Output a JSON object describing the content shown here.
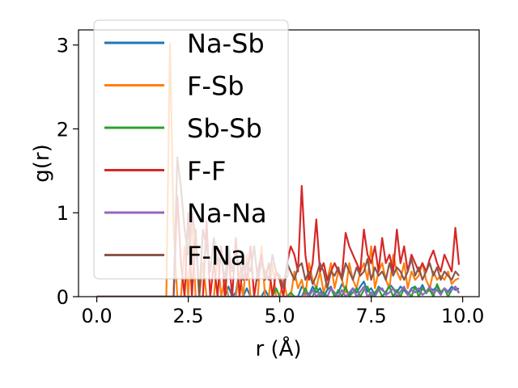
{
  "chart_data": {
    "type": "line",
    "title": "",
    "xlabel": "r (Å)",
    "ylabel": "g(r)",
    "xlim": [
      -0.5,
      10.45
    ],
    "ylim": [
      0,
      3.18
    ],
    "xticks": [
      0.0,
      2.5,
      5.0,
      7.5,
      10.0
    ],
    "xtick_labels": [
      "0.0",
      "2.5",
      "5.0",
      "7.5",
      "10.0"
    ],
    "yticks": [
      0,
      1,
      2,
      3
    ],
    "ytick_labels": [
      "0",
      "1",
      "2",
      "3"
    ],
    "grid": false,
    "legend_position": "upper-left",
    "x": [
      0.0,
      0.1,
      0.2,
      0.3,
      0.4,
      0.5,
      0.6,
      0.7,
      0.8,
      0.9,
      1.0,
      1.1,
      1.2,
      1.3,
      1.4,
      1.5,
      1.6,
      1.7,
      1.8,
      1.9,
      2.0,
      2.1,
      2.2,
      2.3,
      2.4,
      2.5,
      2.6,
      2.7,
      2.8,
      2.9,
      3.0,
      3.1,
      3.2,
      3.3,
      3.4,
      3.5,
      3.6,
      3.7,
      3.8,
      3.9,
      4.0,
      4.1,
      4.2,
      4.3,
      4.4,
      4.5,
      4.6,
      4.7,
      4.8,
      4.9,
      5.0,
      5.1,
      5.2,
      5.3,
      5.4,
      5.5,
      5.6,
      5.7,
      5.8,
      5.9,
      6.0,
      6.1,
      6.2,
      6.3,
      6.4,
      6.5,
      6.6,
      6.7,
      6.8,
      6.9,
      7.0,
      7.1,
      7.2,
      7.3,
      7.4,
      7.5,
      7.6,
      7.7,
      7.8,
      7.9,
      8.0,
      8.1,
      8.2,
      8.3,
      8.4,
      8.5,
      8.6,
      8.7,
      8.8,
      8.9,
      9.0,
      9.1,
      9.2,
      9.3,
      9.4,
      9.5,
      9.6,
      9.7,
      9.8,
      9.9
    ],
    "series": [
      {
        "name": "Na-Sb",
        "color": "#1f77b4",
        "values": [
          0,
          0,
          0,
          0,
          0,
          0,
          0,
          0,
          0,
          0,
          0,
          0,
          0,
          0,
          0,
          0,
          0,
          0,
          0,
          0,
          0,
          0,
          0,
          0,
          0,
          0,
          0,
          0,
          0,
          0,
          0,
          0,
          0,
          0,
          0,
          0,
          0.12,
          0,
          0.05,
          0.3,
          0,
          0.1,
          0,
          0,
          0,
          0,
          0.08,
          0,
          0,
          0,
          0,
          0,
          0,
          0,
          0,
          0,
          0.12,
          0.08,
          0.02,
          0.12,
          0.05,
          0.1,
          0,
          0.08,
          0.12,
          0,
          0.05,
          0.15,
          0.08,
          0.02,
          0.1,
          0.05,
          0.12,
          0.18,
          0.06,
          0.1,
          0.02,
          0.12,
          0.08,
          0.04,
          0.15,
          0.1,
          0.05,
          0.12,
          0.08,
          0.02,
          0.1,
          0.12,
          0.06,
          0.14,
          0.04,
          0.1,
          0.08,
          0.12,
          0.05,
          0.1,
          0.06,
          0.12,
          0.08,
          0.1
        ]
      },
      {
        "name": "F-Sb",
        "color": "#ff7f0e",
        "values": [
          0,
          0,
          0,
          0,
          0,
          0,
          0,
          0,
          0,
          0,
          0,
          0,
          0,
          0,
          0,
          0,
          0,
          0,
          0,
          0,
          3.02,
          0.8,
          0,
          0,
          0.6,
          0,
          1.0,
          0,
          0,
          0.4,
          0,
          0,
          0,
          0.5,
          0,
          0.2,
          0,
          0,
          0,
          0.3,
          0,
          0.5,
          0,
          0,
          0,
          0.6,
          0,
          0,
          0.4,
          0,
          0,
          0.2,
          0,
          0,
          0.3,
          0.1,
          0.2,
          0,
          0.4,
          0.2,
          0.1,
          0.3,
          0.05,
          0.2,
          0.4,
          0.1,
          0.3,
          0.2,
          0.05,
          0.4,
          0.2,
          0.1,
          0.3,
          0.4,
          0.2,
          0.6,
          0.1,
          0.3,
          0.4,
          0.2,
          0.1,
          0.5,
          0.3,
          0.2,
          0.4,
          0.1,
          0.3,
          0.2,
          0.25,
          0.4,
          0.2,
          0.1,
          0.3,
          0.2,
          0.25,
          0.2,
          0.3,
          0.15,
          0.2,
          0.22
        ]
      },
      {
        "name": "Sb-Sb",
        "color": "#2ca02c",
        "values": [
          0,
          0,
          0,
          0,
          0,
          0,
          0,
          0,
          0,
          0,
          0,
          0,
          0,
          0,
          0,
          0,
          0,
          0,
          0,
          0,
          0,
          0,
          0,
          0,
          0,
          0,
          0,
          0,
          0,
          0,
          0,
          0,
          0,
          0,
          0,
          0,
          0,
          0,
          0,
          0,
          0,
          0,
          0,
          0,
          0,
          0,
          0,
          0,
          0,
          0.1,
          0,
          0,
          0,
          0.05,
          0,
          0,
          0,
          0.1,
          0,
          0,
          0.12,
          0,
          0.05,
          0,
          0.1,
          0,
          0.08,
          0,
          0.12,
          0,
          0.05,
          0.1,
          0,
          0.08,
          0.12,
          0,
          0.05,
          0.1,
          0,
          0.06,
          0.12,
          0,
          0.08,
          0,
          0.1,
          0.05,
          0,
          0.12,
          0,
          0.1,
          0.05,
          0.08,
          0,
          0.15,
          0.05,
          0.1,
          0,
          0.08,
          0.12,
          0.05
        ]
      },
      {
        "name": "F-F",
        "color": "#d62728",
        "values": [
          0,
          0,
          0,
          0,
          0,
          0,
          0,
          0,
          0,
          0,
          0,
          0,
          0,
          0,
          0,
          0,
          0,
          0,
          0,
          0,
          0,
          0,
          1.2,
          0.4,
          0,
          1.0,
          0,
          0.8,
          0,
          0,
          0.9,
          0,
          0.4,
          0,
          0.6,
          0,
          0.5,
          0,
          0.7,
          0,
          0.4,
          0.2,
          0.6,
          0,
          0.3,
          0.5,
          0.2,
          0.4,
          0,
          0.3,
          0.2,
          0,
          0.4,
          0.6,
          0.5,
          0.3,
          1.32,
          0.5,
          0.2,
          0.4,
          0.92,
          0.3,
          0.4,
          0.2,
          0.3,
          0.4,
          0.3,
          0.25,
          0.76,
          0.6,
          0.5,
          0.4,
          0.3,
          0.8,
          0.5,
          0.4,
          0.6,
          0.3,
          0.7,
          0.4,
          0.5,
          0.3,
          0.8,
          0.4,
          0.6,
          0.3,
          0.5,
          0.4,
          0.3,
          0.4,
          0.3,
          0.45,
          0.55,
          0.4,
          0.3,
          0.5,
          0.4,
          0.3,
          0.82,
          0.38
        ]
      },
      {
        "name": "Na-Na",
        "color": "#9467bd",
        "values": [
          0,
          0,
          0,
          0,
          0,
          0,
          0,
          0,
          0,
          0,
          0,
          0,
          0,
          0,
          0,
          0,
          0,
          0,
          0,
          0,
          0,
          0,
          0,
          0,
          0,
          0,
          0,
          0,
          0,
          0,
          0,
          0,
          0,
          0,
          0,
          0,
          0,
          0,
          0,
          0,
          0,
          0,
          0,
          0,
          0,
          0,
          0,
          0,
          0,
          0,
          0,
          0,
          0,
          0,
          0,
          0,
          0,
          0.05,
          0,
          0.08,
          0,
          0.05,
          0,
          0,
          0.1,
          0.05,
          0,
          0.08,
          0,
          0.05,
          0.1,
          0,
          0.06,
          0.12,
          0,
          0.05,
          0,
          0.08,
          0.1,
          0.02,
          0.05,
          0.1,
          0,
          0.06,
          0.12,
          0.02,
          0.08,
          0.05,
          0.1,
          0.02,
          0.06,
          0.12,
          0.04,
          0.08,
          0.02,
          0.1,
          0.05,
          0.08,
          0.12,
          0.04
        ]
      },
      {
        "name": "F-Na",
        "color": "#8c564b",
        "values": [
          0,
          0,
          0,
          0,
          0,
          0,
          0,
          0,
          0,
          0,
          0,
          0,
          0,
          0,
          0,
          0,
          0,
          0,
          0,
          0,
          0,
          0,
          1.66,
          1.3,
          0.8,
          0.5,
          1.0,
          0.7,
          0,
          0.8,
          0.6,
          0.3,
          0.7,
          0.4,
          0.5,
          0.2,
          0.6,
          0.3,
          0.5,
          0.4,
          0.2,
          0.4,
          0.3,
          0.6,
          0.2,
          0.4,
          0.3,
          0.2,
          0.5,
          0.3,
          0.25,
          0.1,
          0.4,
          0.3,
          0.2,
          0.35,
          0.4,
          0.2,
          0.3,
          0.15,
          0.25,
          0.4,
          0.3,
          0.1,
          0.3,
          0.25,
          0.35,
          0.2,
          0.4,
          0.3,
          0.2,
          0.35,
          0.25,
          0.3,
          0.45,
          0.2,
          0.35,
          0.25,
          0.3,
          0.2,
          0.4,
          0.25,
          0.35,
          0.3,
          0.2,
          0.3,
          0.45,
          0.25,
          0.35,
          0.2,
          0.3,
          0.4,
          0.25,
          0.35,
          0.2,
          0.3,
          0.25,
          0.2,
          0.3,
          0.25
        ]
      }
    ]
  }
}
